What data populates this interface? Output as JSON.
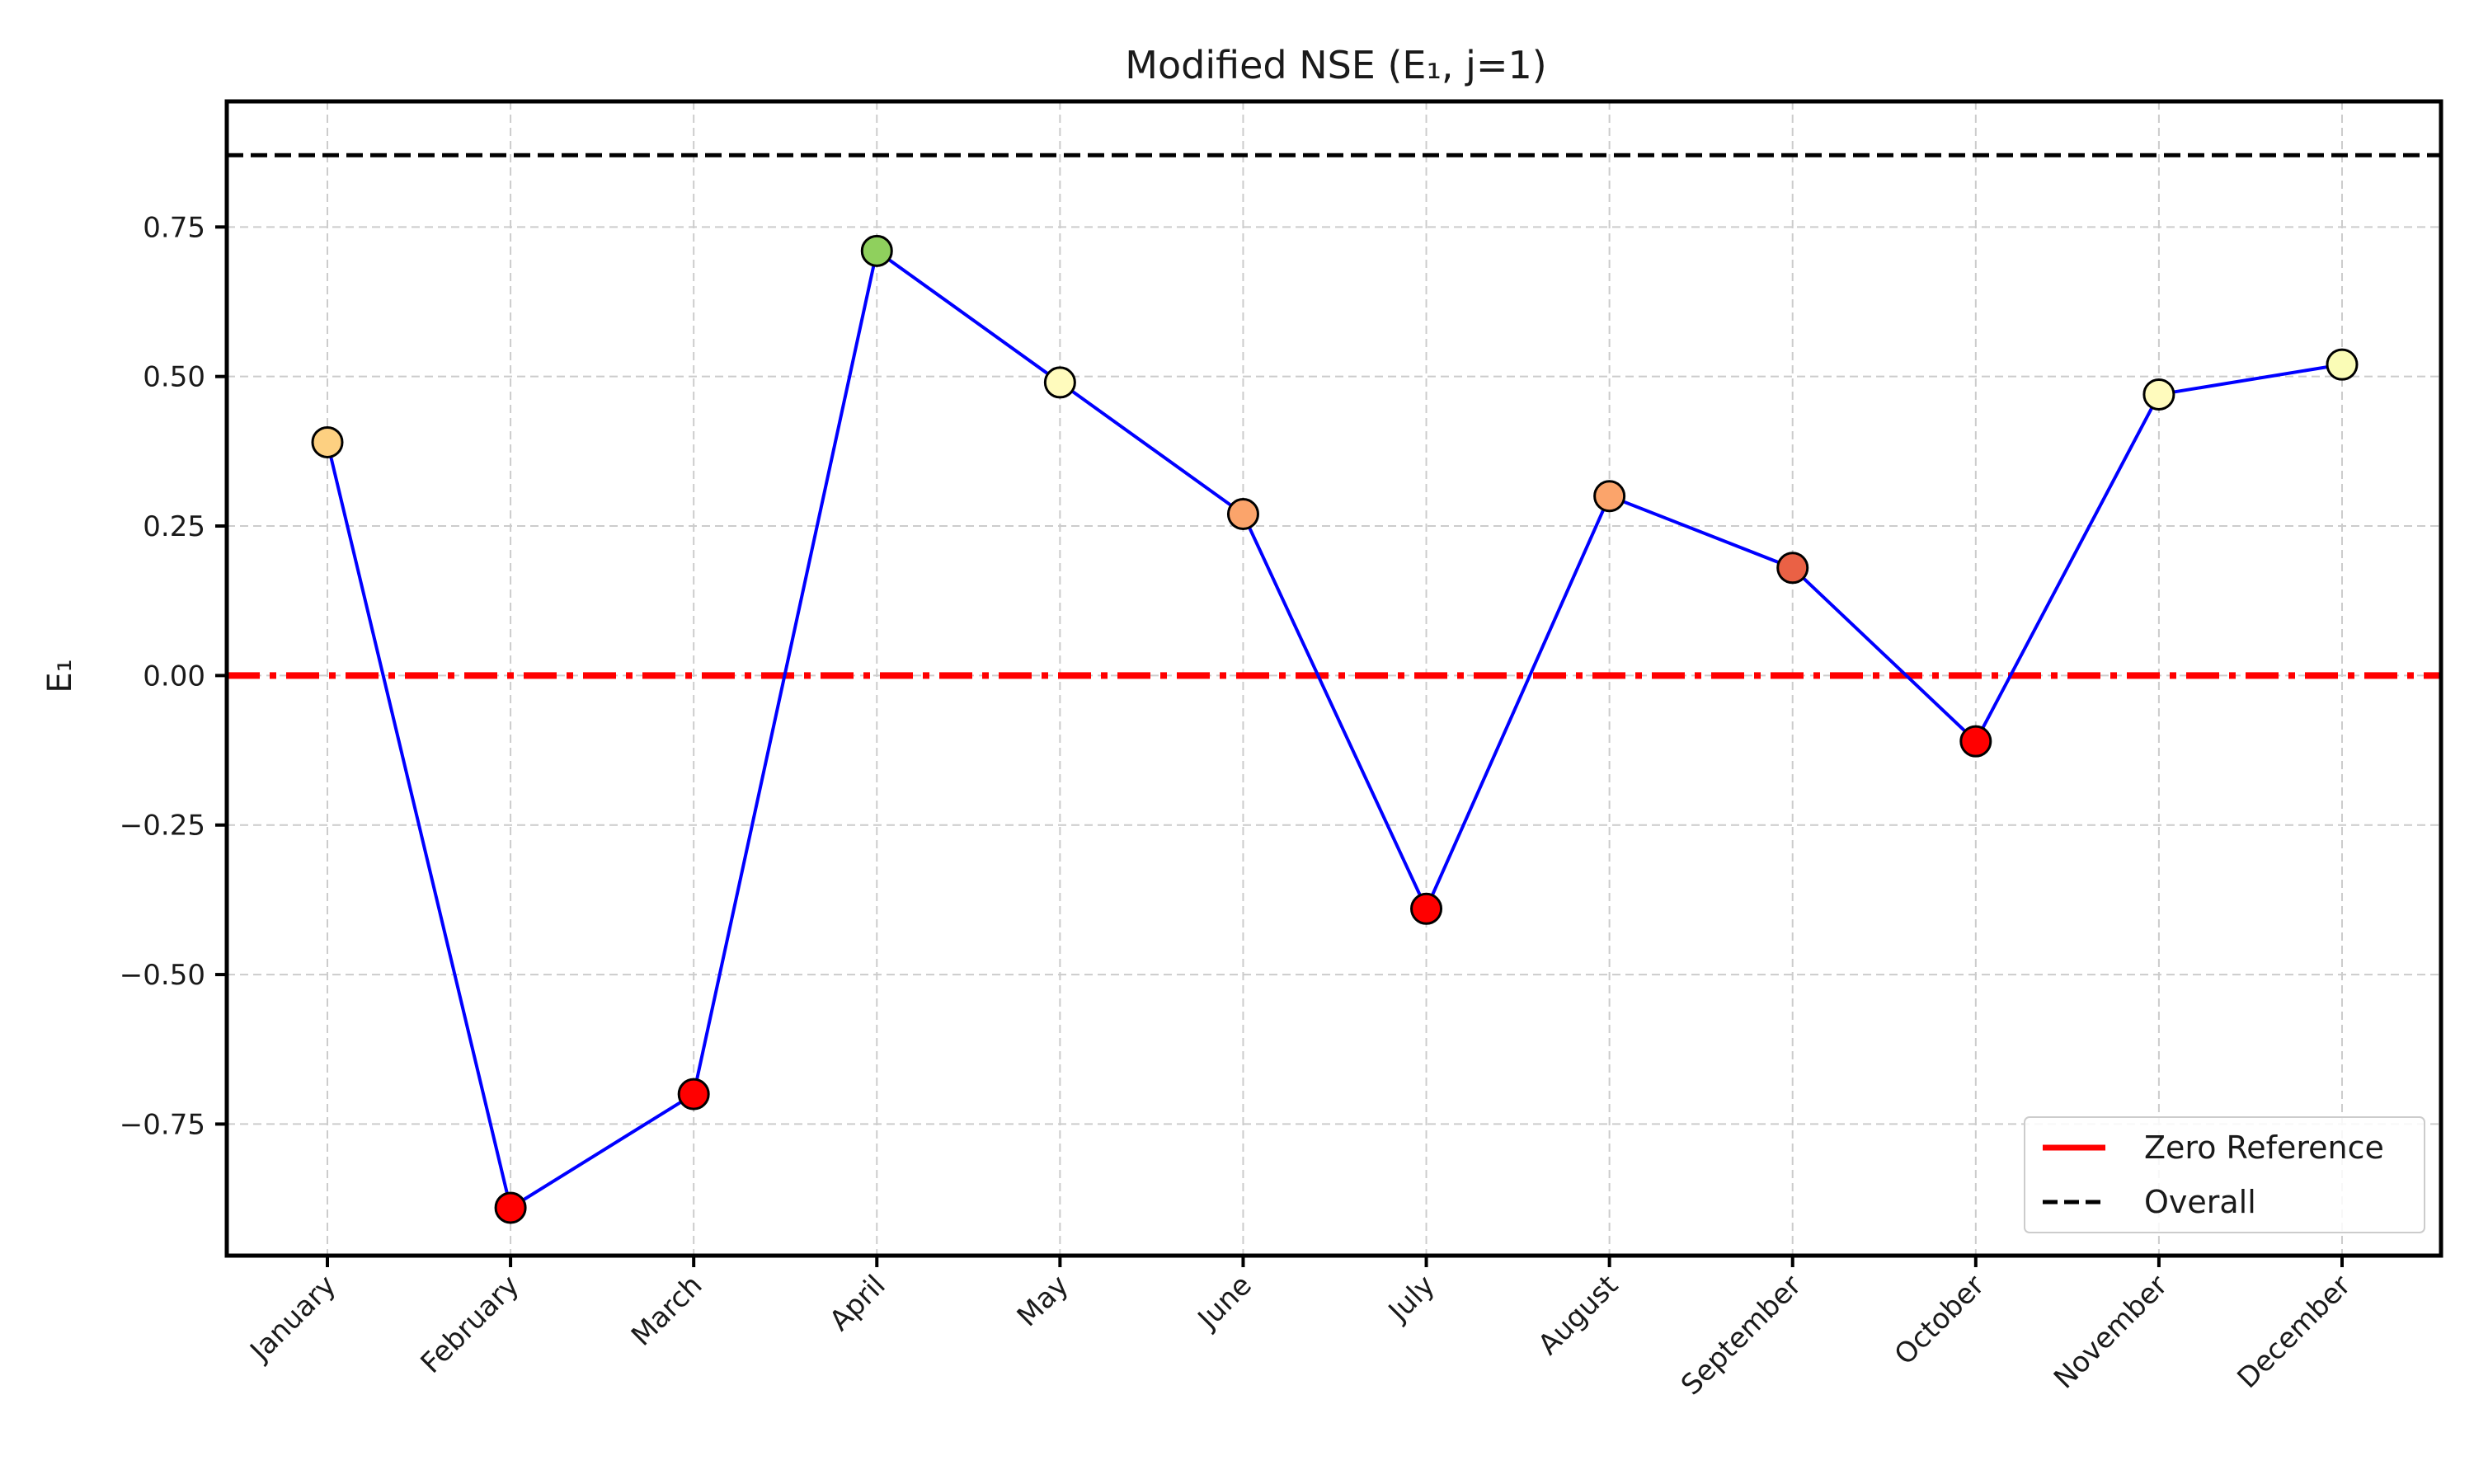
{
  "chart_data": {
    "type": "line",
    "title": "Modified NSE (E₁, j=1)",
    "ylabel": "E₁",
    "xlabel": "",
    "categories": [
      "January",
      "February",
      "March",
      "April",
      "May",
      "June",
      "July",
      "August",
      "September",
      "October",
      "November",
      "December"
    ],
    "series": [
      {
        "values": [
          0.39,
          -0.89,
          -0.7,
          0.71,
          0.49,
          0.27,
          -0.39,
          0.3,
          0.18,
          -0.11,
          0.47,
          0.52
        ],
        "line_color": "#0000ff",
        "marker_colors": [
          "#fdd081",
          "#ff0000",
          "#ff0000",
          "#8fd05d",
          "#fffbbd",
          "#fba46b",
          "#ff0000",
          "#fba46b",
          "#ea6145",
          "#ff0000",
          "#fffbbd",
          "#fafcb6"
        ]
      }
    ],
    "reference_lines": [
      {
        "name": "Zero Reference",
        "y": 0.0,
        "color": "#ff0000",
        "style": "dash-dot"
      },
      {
        "name": "Overall",
        "y": 0.87,
        "color": "#000000",
        "style": "dashed"
      }
    ],
    "yticks": [
      0.75,
      0.5,
      0.25,
      0.0,
      -0.25,
      -0.5,
      -0.75
    ],
    "ytick_labels": [
      "0.75",
      "0.50",
      "0.25",
      "0.00",
      "−0.25",
      "−0.50",
      "−0.75"
    ],
    "ylim": [
      -0.97,
      0.96
    ],
    "grid": true,
    "legend_position": "lower-right"
  }
}
